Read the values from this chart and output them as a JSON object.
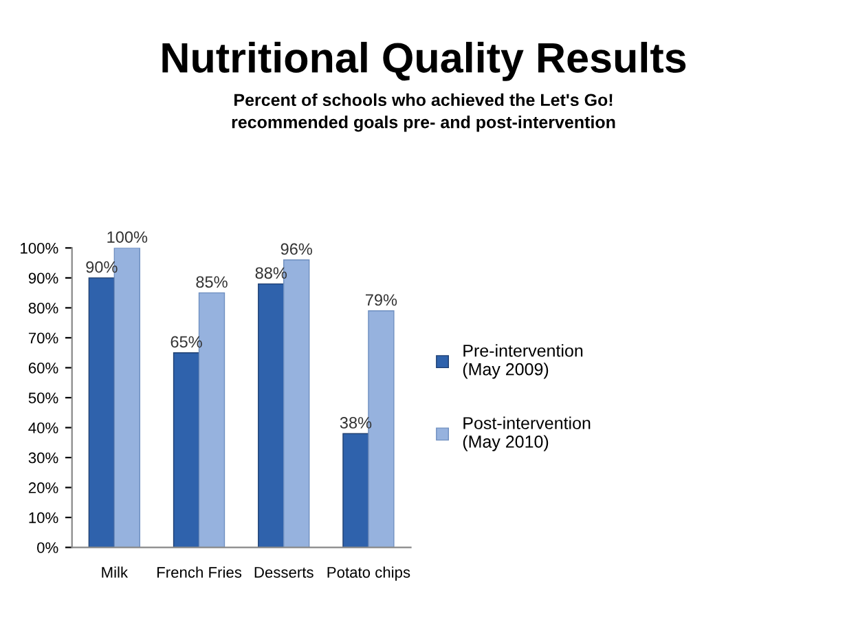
{
  "chart_data": {
    "type": "bar",
    "title": "Nutritional Quality Results",
    "subtitle": "Percent of schools who achieved the Let's Go!\nrecommended goals pre- and post-intervention",
    "categories": [
      "Milk",
      "French Fries",
      "Desserts",
      "Potato chips"
    ],
    "series": [
      {
        "name": "Pre-intervention\n(May 2009)",
        "color": "#2f62ac",
        "values": [
          90,
          65,
          88,
          38
        ],
        "value_labels": [
          "90%",
          "65%",
          "88%",
          "38%"
        ]
      },
      {
        "name": "Post-intervention\n(May 2010)",
        "color": "#96b2de",
        "values": [
          100,
          85,
          96,
          79
        ],
        "value_labels": [
          "100%",
          "85%",
          "96%",
          "79%"
        ]
      }
    ],
    "ylim": [
      0,
      100
    ],
    "yticks": [
      {
        "value": 0,
        "label": "0%"
      },
      {
        "value": 10,
        "label": "10%"
      },
      {
        "value": 20,
        "label": "20%"
      },
      {
        "value": 30,
        "label": "30%"
      },
      {
        "value": 40,
        "label": "40%"
      },
      {
        "value": 50,
        "label": "50%"
      },
      {
        "value": 60,
        "label": "60%"
      },
      {
        "value": 70,
        "label": "70%"
      },
      {
        "value": 80,
        "label": "80%"
      },
      {
        "value": 90,
        "label": "90%"
      },
      {
        "value": 100,
        "label": "100%"
      }
    ],
    "legend": "right"
  }
}
